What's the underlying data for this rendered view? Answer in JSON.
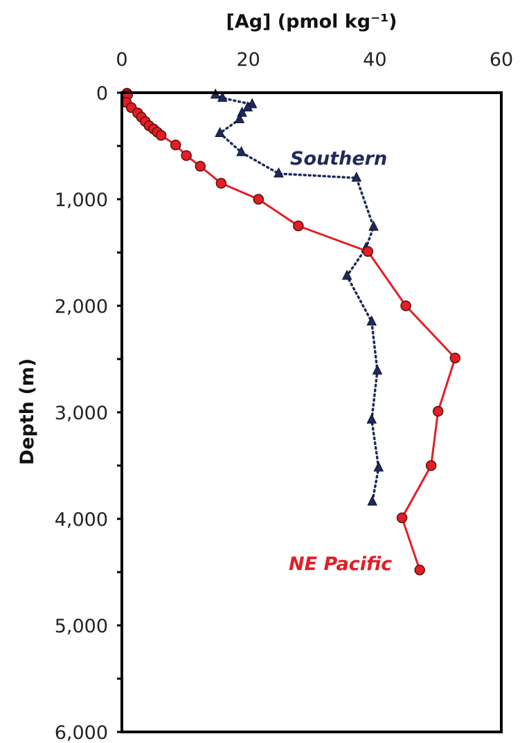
{
  "chart_data": {
    "type": "line",
    "xlabel": "[Ag] (pmol kg⁻¹)",
    "ylabel": "Depth (m)",
    "xlim": [
      0,
      60
    ],
    "ylim": [
      6000,
      0
    ],
    "x_axis_position": "top",
    "y_inverted": true,
    "grid": false,
    "x_ticks": [
      0,
      20,
      40,
      60
    ],
    "x_tick_labels": [
      "0",
      "20",
      "40",
      "60"
    ],
    "y_ticks": [
      0,
      1000,
      2000,
      3000,
      4000,
      5000,
      6000
    ],
    "y_tick_labels": [
      "0",
      "1,000",
      "2,000",
      "3,000",
      "4,000",
      "5,000",
      "6,000"
    ],
    "y_minor_ticks": [
      500,
      1500,
      2500,
      3500,
      4500,
      5500
    ],
    "series": [
      {
        "name": "Southern",
        "color": "#1f2a5c",
        "line_style": "dotted",
        "marker": "triangle",
        "points": [
          {
            "x": 14.8,
            "y": 20
          },
          {
            "x": 15.9,
            "y": 50
          },
          {
            "x": 20.6,
            "y": 110
          },
          {
            "x": 19.9,
            "y": 140
          },
          {
            "x": 19.0,
            "y": 190
          },
          {
            "x": 18.6,
            "y": 250
          },
          {
            "x": 15.5,
            "y": 380
          },
          {
            "x": 18.9,
            "y": 560
          },
          {
            "x": 24.8,
            "y": 760
          },
          {
            "x": 37.1,
            "y": 800
          },
          {
            "x": 39.8,
            "y": 1260
          },
          {
            "x": 38.6,
            "y": 1460
          },
          {
            "x": 35.6,
            "y": 1720
          },
          {
            "x": 39.5,
            "y": 2150
          },
          {
            "x": 40.4,
            "y": 2610
          },
          {
            "x": 39.5,
            "y": 3070
          },
          {
            "x": 40.6,
            "y": 3520
          },
          {
            "x": 39.6,
            "y": 3840
          }
        ]
      },
      {
        "name": "NE Pacific",
        "color": "#e31e24",
        "line_style": "solid",
        "marker": "circle",
        "points": [
          {
            "x": 0.8,
            "y": 5
          },
          {
            "x": 0.9,
            "y": 20
          },
          {
            "x": 0.7,
            "y": 90
          },
          {
            "x": 1.5,
            "y": 140
          },
          {
            "x": 2.5,
            "y": 190
          },
          {
            "x": 3.1,
            "y": 230
          },
          {
            "x": 3.7,
            "y": 270
          },
          {
            "x": 4.3,
            "y": 310
          },
          {
            "x": 5.0,
            "y": 340
          },
          {
            "x": 5.6,
            "y": 370
          },
          {
            "x": 6.2,
            "y": 400
          },
          {
            "x": 8.5,
            "y": 490
          },
          {
            "x": 10.2,
            "y": 590
          },
          {
            "x": 12.4,
            "y": 690
          },
          {
            "x": 15.7,
            "y": 850
          },
          {
            "x": 21.6,
            "y": 1000
          },
          {
            "x": 27.9,
            "y": 1250
          },
          {
            "x": 38.9,
            "y": 1490
          },
          {
            "x": 44.9,
            "y": 2000
          },
          {
            "x": 52.7,
            "y": 2490
          },
          {
            "x": 50.0,
            "y": 2990
          },
          {
            "x": 48.9,
            "y": 3500
          },
          {
            "x": 44.3,
            "y": 3990
          },
          {
            "x": 47.1,
            "y": 4480
          }
        ]
      }
    ],
    "annotations": [
      {
        "text": "Southern",
        "series": "Southern"
      },
      {
        "text": "NE Pacific",
        "series": "NE Pacific"
      }
    ]
  }
}
